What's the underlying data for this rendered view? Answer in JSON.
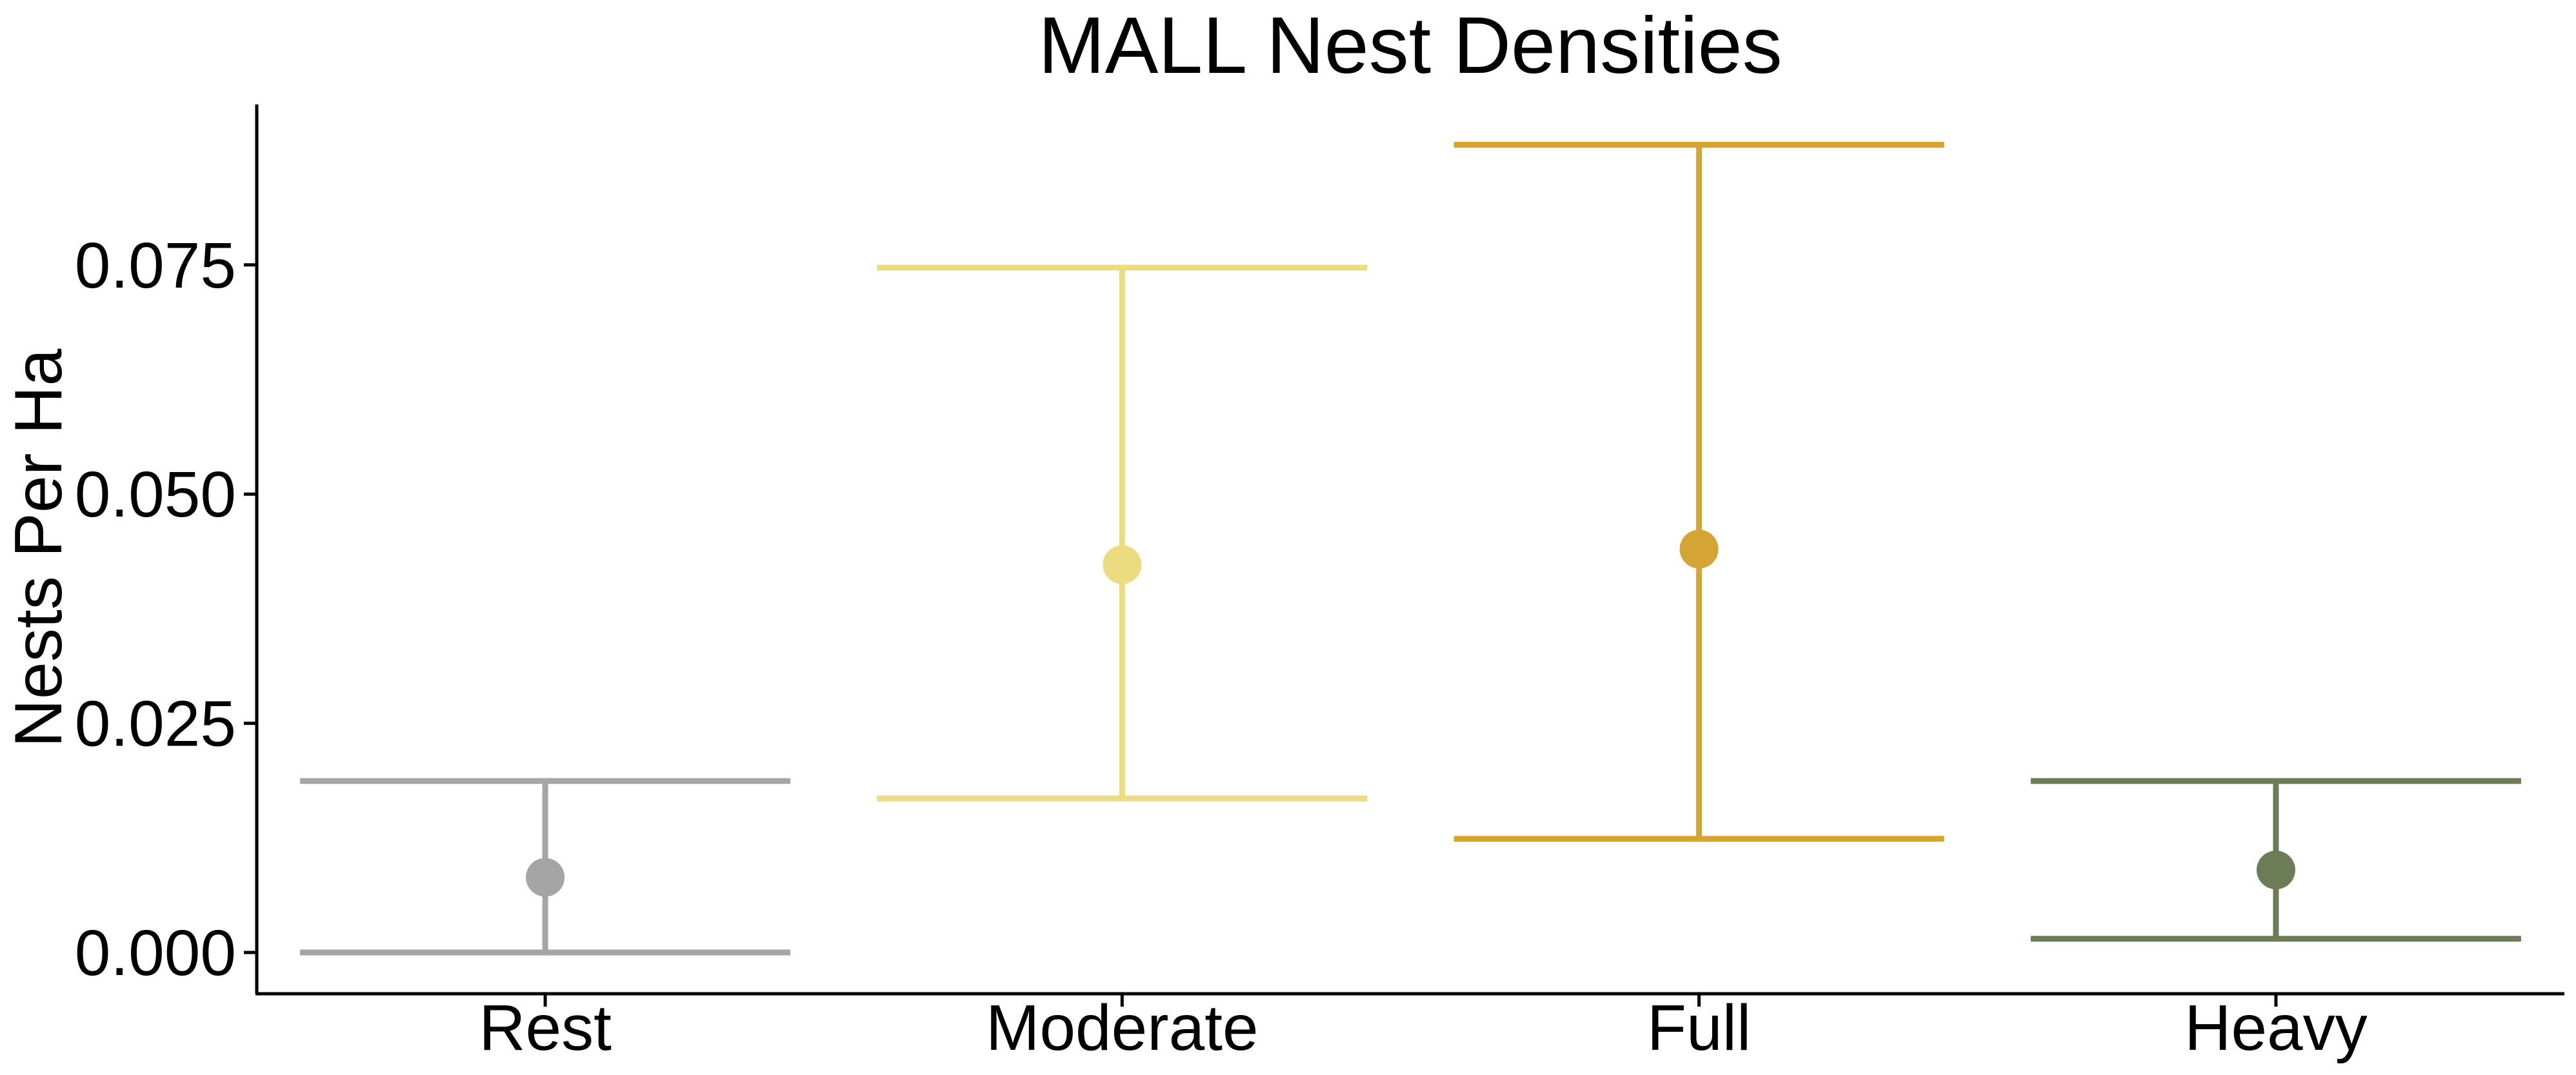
{
  "chart_data": {
    "type": "errorbar",
    "title": "MALL Nest Densities",
    "xlabel": "",
    "ylabel": "Nests Per Ha",
    "categories": [
      "Rest",
      "Moderate",
      "Full",
      "Heavy"
    ],
    "points": [
      {
        "category": "Rest",
        "estimate": 0.0082,
        "lower": 0.0,
        "upper": 0.0187,
        "color": "#a5a5a5"
      },
      {
        "category": "Moderate",
        "estimate": 0.0423,
        "lower": 0.0168,
        "upper": 0.0747,
        "color": "#ebdc7f"
      },
      {
        "category": "Full",
        "estimate": 0.044,
        "lower": 0.0124,
        "upper": 0.0881,
        "color": "#d4a535"
      },
      {
        "category": "Heavy",
        "estimate": 0.009,
        "lower": 0.0015,
        "upper": 0.0187,
        "color": "#6b7c56"
      }
    ],
    "y_ticks": [
      "0.000",
      "0.025",
      "0.050",
      "0.075"
    ],
    "ylim": [
      -0.0045,
      0.0925
    ],
    "grid": false,
    "legend": "none"
  }
}
